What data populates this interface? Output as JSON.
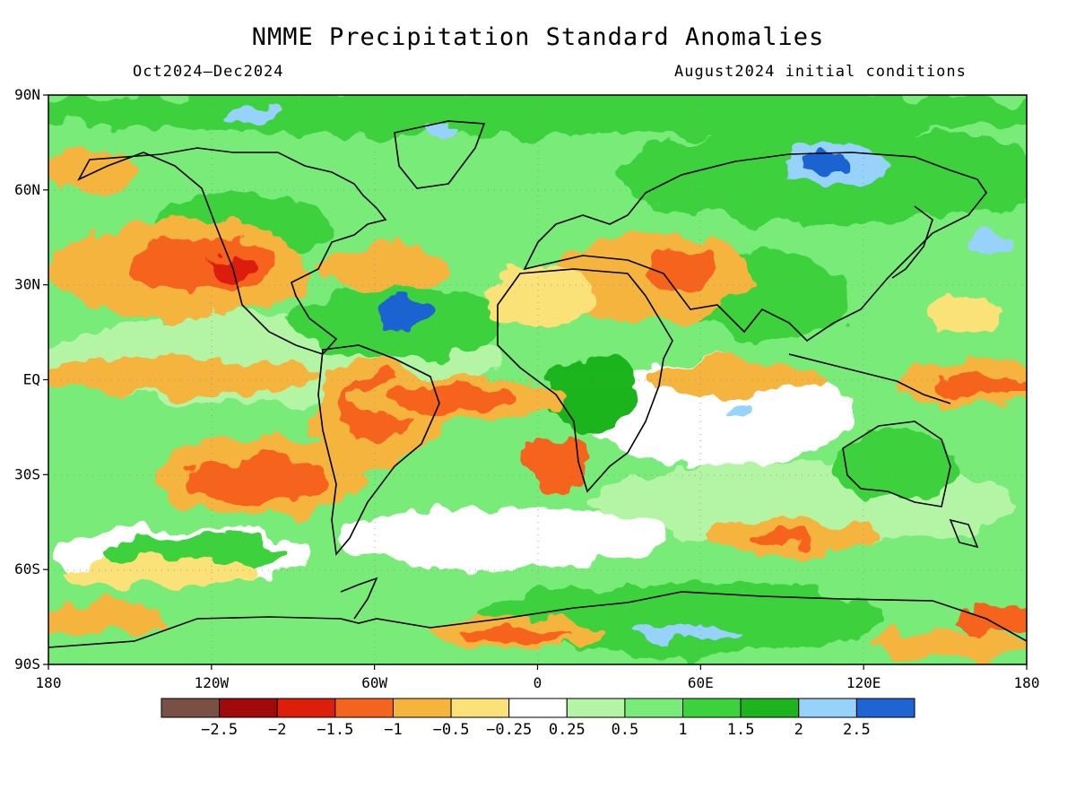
{
  "title": "NMME Precipitation Standard Anomalies",
  "subtitle_left": "Oct2024–Dec2024",
  "subtitle_right": "August2024 initial conditions",
  "axes": {
    "lat_labels": [
      "90N",
      "60N",
      "30N",
      "EQ",
      "30S",
      "60S",
      "90S"
    ],
    "lat_values": [
      90,
      60,
      30,
      0,
      -30,
      -60,
      -90
    ],
    "lon_labels": [
      "180",
      "120W",
      "60W",
      "0",
      "60E",
      "120E",
      "180"
    ],
    "lon_values": [
      -180,
      -120,
      -60,
      0,
      60,
      120,
      180
    ]
  },
  "colorbar": {
    "colors": [
      "#7a5044",
      "#a00a0a",
      "#dc1e0a",
      "#f5641e",
      "#f5b43c",
      "#fae178",
      "#ffffff",
      "#b4f5a5",
      "#78eb78",
      "#3cd23c",
      "#1eb41e",
      "#96d2fa",
      "#1e64d2"
    ],
    "labels": [
      "-2.5",
      "-2",
      "-1.5",
      "-1",
      "-0.5",
      "-0.25",
      "0.25",
      "0.5",
      "1",
      "1.5",
      "2",
      "2.5"
    ]
  }
}
